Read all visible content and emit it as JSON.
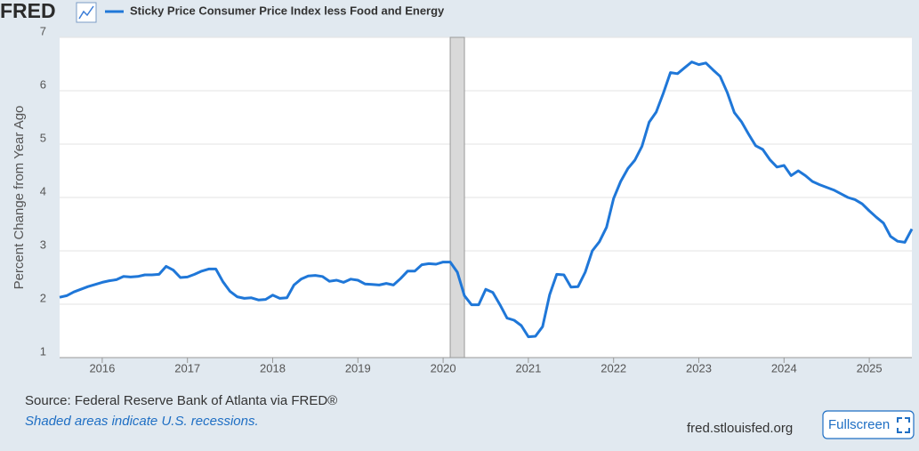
{
  "logo": "FRED",
  "chart_data": {
    "type": "line",
    "title": "Sticky Price Consumer Price Index less Food and Energy",
    "y_label": "Percent Change from Year Ago",
    "x": [
      2015.5,
      2015.583,
      2015.667,
      2015.75,
      2015.833,
      2015.917,
      2016,
      2016.083,
      2016.167,
      2016.25,
      2016.333,
      2016.417,
      2016.5,
      2016.583,
      2016.667,
      2016.75,
      2016.833,
      2016.917,
      2017,
      2017.083,
      2017.167,
      2017.25,
      2017.333,
      2017.417,
      2017.5,
      2017.583,
      2017.667,
      2017.75,
      2017.833,
      2017.917,
      2018,
      2018.083,
      2018.167,
      2018.25,
      2018.333,
      2018.417,
      2018.5,
      2018.583,
      2018.667,
      2018.75,
      2018.833,
      2018.917,
      2019,
      2019.083,
      2019.167,
      2019.25,
      2019.333,
      2019.417,
      2019.5,
      2019.583,
      2019.667,
      2019.75,
      2019.833,
      2019.917,
      2020,
      2020.083,
      2020.167,
      2020.25,
      2020.333,
      2020.417,
      2020.5,
      2020.583,
      2020.667,
      2020.75,
      2020.833,
      2020.917,
      2021,
      2021.083,
      2021.167,
      2021.25,
      2021.333,
      2021.417,
      2021.5,
      2021.583,
      2021.667,
      2021.75,
      2021.833,
      2021.917,
      2022,
      2022.083,
      2022.167,
      2022.25,
      2022.333,
      2022.417,
      2022.5,
      2022.583,
      2022.667,
      2022.75,
      2022.833,
      2022.917,
      2023,
      2023.083,
      2023.167,
      2023.25,
      2023.333,
      2023.417,
      2023.5,
      2023.583,
      2023.667,
      2023.75,
      2023.833,
      2023.917,
      2024,
      2024.083,
      2024.167,
      2024.25,
      2024.333,
      2024.417,
      2024.5,
      2024.583,
      2024.667,
      2024.75,
      2024.833,
      2024.917,
      2025,
      2025.083,
      2025.167,
      2025.25,
      2025.333,
      2025.417,
      2025.5
    ],
    "series": [
      {
        "name": "Sticky Price Consumer Price Index less Food and Energy",
        "color": "#1f77d8",
        "values": [
          2.13,
          2.16,
          2.23,
          2.28,
          2.33,
          2.37,
          2.41,
          2.44,
          2.46,
          2.52,
          2.51,
          2.52,
          2.55,
          2.55,
          2.56,
          2.71,
          2.64,
          2.5,
          2.51,
          2.56,
          2.62,
          2.66,
          2.66,
          2.42,
          2.24,
          2.14,
          2.11,
          2.12,
          2.08,
          2.09,
          2.17,
          2.11,
          2.12,
          2.36,
          2.47,
          2.53,
          2.54,
          2.52,
          2.43,
          2.45,
          2.41,
          2.47,
          2.45,
          2.38,
          2.37,
          2.36,
          2.39,
          2.36,
          2.48,
          2.62,
          2.62,
          2.74,
          2.76,
          2.75,
          2.79,
          2.79,
          2.6,
          2.16,
          1.99,
          1.99,
          2.28,
          2.22,
          1.99,
          1.74,
          1.7,
          1.6,
          1.39,
          1.4,
          1.58,
          2.18,
          2.56,
          2.55,
          2.32,
          2.33,
          2.6,
          3.0,
          3.17,
          3.44,
          3.98,
          4.3,
          4.54,
          4.7,
          4.96,
          5.41,
          5.6,
          5.95,
          6.34,
          6.32,
          6.43,
          6.54,
          6.49,
          6.52,
          6.39,
          6.27,
          5.97,
          5.59,
          5.42,
          5.19,
          4.97,
          4.9,
          4.71,
          4.57,
          4.6,
          4.41,
          4.5,
          4.41,
          4.3,
          4.24,
          4.19,
          4.14,
          4.07,
          4.0,
          3.96,
          3.88,
          3.75,
          3.63,
          3.52,
          3.27,
          3.18,
          3.16,
          3.41
        ]
      }
    ],
    "recessions": [
      [
        2020.083,
        2020.25
      ]
    ],
    "xlim": [
      2015.5,
      2025.5
    ],
    "xticks": [
      2016,
      2017,
      2018,
      2019,
      2020,
      2021,
      2022,
      2023,
      2024,
      2025
    ],
    "ylim": [
      1,
      7
    ],
    "yticks": [
      1,
      2,
      3,
      4,
      5,
      6,
      7
    ],
    "grid": true
  },
  "footer": {
    "source": "Source: Federal Reserve Bank of Atlanta via FRED®",
    "note": "Shaded areas indicate U.S. recessions.",
    "site": "fred.stlouisfed.org",
    "button": "Fullscreen"
  }
}
